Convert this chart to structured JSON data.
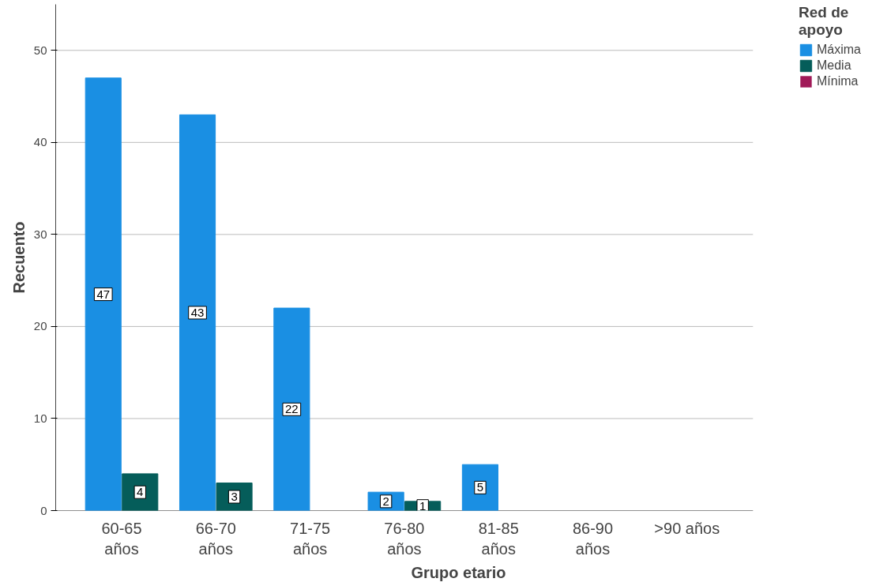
{
  "chart_data": {
    "type": "bar",
    "xlabel": "Grupo etario",
    "ylabel": "Recuento",
    "legend_title": "Red de apoyo",
    "categories": [
      "60-65 años",
      "66-70 años",
      "71-75 años",
      "76-80 años",
      "81-85 años",
      "86-90 años",
      ">90 años"
    ],
    "series": [
      {
        "name": "Máxima",
        "color": "#1a8fe3",
        "values": [
          47,
          43,
          22,
          2,
          5,
          null,
          null
        ]
      },
      {
        "name": "Media",
        "color": "#055d5a",
        "values": [
          4,
          3,
          null,
          1,
          null,
          null,
          null
        ]
      },
      {
        "name": "Mínima",
        "color": "#a01a58",
        "values": [
          null,
          null,
          null,
          null,
          null,
          null,
          null
        ]
      }
    ],
    "ylim": [
      0,
      55
    ],
    "yticks": [
      0,
      10,
      20,
      30,
      40,
      50
    ],
    "grid": "y",
    "legend": "top right",
    "data_labels": true
  }
}
